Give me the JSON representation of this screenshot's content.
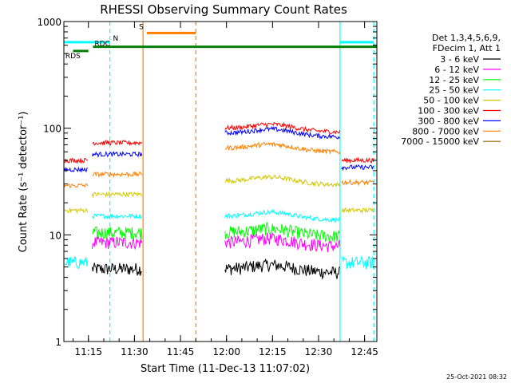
{
  "chart_data": {
    "type": "line",
    "title": "RHESSI Observing Summary Count Rates",
    "xlabel": "Start Time (11-Dec-13 11:07:02)",
    "ylabel": "Count Rate (s⁻¹ detector⁻¹)",
    "yscale": "log",
    "ylim": [
      1,
      1000
    ],
    "xlim_minutes_after_1107": [
      0,
      102
    ],
    "x_ticks": [
      {
        "label": "11:15",
        "t": 8
      },
      {
        "label": "11:30",
        "t": 23
      },
      {
        "label": "11:45",
        "t": 38
      },
      {
        "label": "12:00",
        "t": 53
      },
      {
        "label": "12:15",
        "t": 68
      },
      {
        "label": "12:30",
        "t": 83
      },
      {
        "label": "12:45",
        "t": 98
      }
    ],
    "y_ticks": [
      {
        "label": "1",
        "v": 1
      },
      {
        "label": "10",
        "v": 10
      },
      {
        "label": "100",
        "v": 100
      },
      {
        "label": "1000",
        "v": 1000
      }
    ],
    "legend_header": [
      "Det 1,3,4,5,6,9,",
      "FDecim 1, Att 1"
    ],
    "legend_position": "right",
    "series": [
      {
        "name": "3 - 6 keV",
        "color": "#000000",
        "levels": {
          "pre": 0,
          "mid": 4.8,
          "post": 4.8,
          "late": 0
        }
      },
      {
        "name": "6 - 12 keV",
        "color": "#ff00ff",
        "levels": {
          "pre": 0,
          "mid": 8.5,
          "post": 8.5,
          "late": 0
        }
      },
      {
        "name": "12 - 25 keV",
        "color": "#00ff00",
        "levels": {
          "pre": 0,
          "mid": 10.5,
          "post": 10.5,
          "late": 0
        }
      },
      {
        "name": "25 - 50 keV",
        "color": "#00ffff",
        "levels": {
          "pre": 5.5,
          "mid": 15,
          "post": 15,
          "late": 5.5
        }
      },
      {
        "name": "50 - 100 keV",
        "color": "#d4c800",
        "levels": {
          "pre": 17,
          "mid": 24,
          "post": 32,
          "late": 17
        }
      },
      {
        "name": "100 - 300 keV",
        "color": "#ff0000",
        "levels": {
          "pre": 50,
          "mid": 73,
          "post": 100,
          "late": 50
        }
      },
      {
        "name": "300 - 800 keV",
        "color": "#0000ff",
        "levels": {
          "pre": 41,
          "mid": 57,
          "post": 90,
          "late": 43
        }
      },
      {
        "name": "800 - 7000 keV",
        "color": "#ff8000",
        "levels": {
          "pre": 29,
          "mid": 37,
          "post": 65,
          "late": 31
        }
      },
      {
        "name": "7000 - 15000 keV",
        "color": "#996600",
        "levels": {
          "pre": 0,
          "mid": 0,
          "post": 0,
          "late": 0
        }
      }
    ],
    "segments": {
      "pre": [
        0,
        7.8
      ],
      "mid": [
        9.2,
        25.5
      ],
      "post": [
        52.5,
        90
      ],
      "late": [
        90.5,
        101
      ]
    },
    "state_bars": [
      {
        "label": "N",
        "color": "#00ffff",
        "y_value": 640,
        "ranges": [
          [
            0,
            15
          ],
          [
            90,
            101
          ]
        ]
      },
      {
        "label": "S",
        "color": "#ff8000",
        "y_value": 780,
        "ranges": [
          [
            27,
            43
          ]
        ]
      },
      {
        "label": "RDC",
        "color": "#008000",
        "y_value": 580,
        "ranges": [
          [
            9.5,
            102
          ]
        ]
      },
      {
        "label": "RDS",
        "color": "#008000",
        "y_value": 530,
        "ranges": [
          [
            3,
            8
          ]
        ]
      }
    ],
    "markers": [
      {
        "t": 15,
        "color": "#00ffff",
        "style": "dashed"
      },
      {
        "t": 25.8,
        "color": "#ff8000",
        "style": "solid"
      },
      {
        "t": 43,
        "color": "#ff8000",
        "style": "dashed"
      },
      {
        "t": 90,
        "color": "#00ffff",
        "style": "solid"
      },
      {
        "t": 101,
        "color": "#00ffff",
        "style": "dashed"
      }
    ]
  },
  "footer": {
    "timestamp": "25-Oct-2021 08:32"
  }
}
